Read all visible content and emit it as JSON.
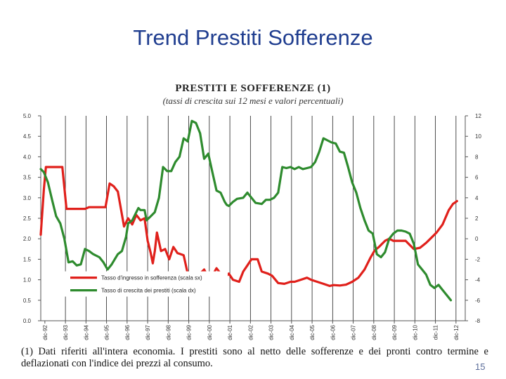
{
  "slide": {
    "title": "Trend Prestiti Sofferenze",
    "page_number": "15"
  },
  "chart_data": {
    "type": "line",
    "title": "PRESTITI E SOFFERENZE (1)",
    "subtitle": "(tassi di crescita sui 12 mesi e valori percentuali)",
    "footnote": "(1) Dati riferiti all'intera economia. I prestiti sono al netto delle sofferenze e dei pronti contro termine e deflazionati con l'indice dei prezzi al consumo.",
    "x_ticks": [
      "dic-92",
      "dic-93",
      "dic-94",
      "dic-95",
      "dic-96",
      "dic-97",
      "dic-98",
      "dic-99",
      "dic-00",
      "dic-01",
      "dic-02",
      "dic-03",
      "dic-04",
      "dic-05",
      "dic-06",
      "dic-07",
      "dic-08",
      "dic-09",
      "dic-10",
      "dic-11",
      "dic-12"
    ],
    "x_range": [
      1992.75,
      2013.4
    ],
    "left_axis": {
      "ticks": [
        "0.0",
        "0.5",
        "1.0",
        "1.5",
        "2.0",
        "2.5",
        "3.0",
        "3.5",
        "4.0",
        "4.5",
        "5.0"
      ],
      "ylim": [
        0,
        5
      ]
    },
    "right_axis": {
      "ticks": [
        "-8",
        "-6",
        "-4",
        "-2",
        "0",
        "2",
        "4",
        "6",
        "8",
        "10",
        "12"
      ],
      "ylim": [
        -8,
        12
      ]
    },
    "grid": "vertical",
    "legend_position": "lower-left",
    "series": [
      {
        "name": "Tasso d'ingresso in sofferenza (scala sx)",
        "axis": "left",
        "color": "#e0201b",
        "points": [
          [
            1992.75,
            2.1
          ],
          [
            1992.9,
            3.2
          ],
          [
            1993.0,
            3.75
          ],
          [
            1993.3,
            3.75
          ],
          [
            1993.6,
            3.75
          ],
          [
            1993.8,
            3.75
          ],
          [
            1994.0,
            2.73
          ],
          [
            1994.3,
            2.73
          ],
          [
            1994.6,
            2.73
          ],
          [
            1994.9,
            2.73
          ],
          [
            1995.1,
            2.77
          ],
          [
            1995.4,
            2.77
          ],
          [
            1995.7,
            2.77
          ],
          [
            1995.9,
            2.77
          ],
          [
            1996.1,
            3.35
          ],
          [
            1996.3,
            3.28
          ],
          [
            1996.5,
            3.15
          ],
          [
            1996.8,
            2.3
          ],
          [
            1997.0,
            2.5
          ],
          [
            1997.2,
            2.35
          ],
          [
            1997.4,
            2.58
          ],
          [
            1997.6,
            2.45
          ],
          [
            1997.8,
            2.5
          ],
          [
            1997.95,
            1.95
          ],
          [
            1998.1,
            1.65
          ],
          [
            1998.2,
            1.4
          ],
          [
            1998.3,
            1.7
          ],
          [
            1998.4,
            2.15
          ],
          [
            1998.6,
            1.7
          ],
          [
            1998.8,
            1.75
          ],
          [
            1999.0,
            1.5
          ],
          [
            1999.2,
            1.8
          ],
          [
            1999.4,
            1.65
          ],
          [
            1999.7,
            1.6
          ],
          [
            1999.9,
            1.15
          ],
          [
            2000.1,
            1.15
          ],
          [
            2000.3,
            1.12
          ],
          [
            2000.5,
            1.15
          ],
          [
            2000.7,
            1.25
          ],
          [
            2000.9,
            1.05
          ],
          [
            2001.1,
            1.1
          ],
          [
            2001.3,
            1.28
          ],
          [
            2001.5,
            1.15
          ],
          [
            2001.7,
            1.05
          ],
          [
            2001.9,
            1.15
          ],
          [
            2002.1,
            1.0
          ],
          [
            2002.4,
            0.95
          ],
          [
            2002.6,
            1.2
          ],
          [
            2002.8,
            1.35
          ],
          [
            2003.0,
            1.5
          ],
          [
            2003.3,
            1.5
          ],
          [
            2003.5,
            1.2
          ],
          [
            2003.8,
            1.15
          ],
          [
            2004.0,
            1.1
          ],
          [
            2004.3,
            0.92
          ],
          [
            2004.6,
            0.9
          ],
          [
            2004.9,
            0.95
          ],
          [
            2005.1,
            0.95
          ],
          [
            2005.4,
            1.0
          ],
          [
            2005.7,
            1.05
          ],
          [
            2005.9,
            1.0
          ],
          [
            2006.2,
            0.95
          ],
          [
            2006.5,
            0.9
          ],
          [
            2006.8,
            0.85
          ],
          [
            2007.0,
            0.87
          ],
          [
            2007.3,
            0.86
          ],
          [
            2007.6,
            0.88
          ],
          [
            2007.9,
            0.95
          ],
          [
            2008.2,
            1.05
          ],
          [
            2008.5,
            1.25
          ],
          [
            2008.8,
            1.55
          ],
          [
            2009.0,
            1.72
          ],
          [
            2009.2,
            1.8
          ],
          [
            2009.5,
            1.95
          ],
          [
            2009.7,
            2.0
          ],
          [
            2009.9,
            1.95
          ],
          [
            2010.2,
            1.95
          ],
          [
            2010.5,
            1.95
          ],
          [
            2010.7,
            1.85
          ],
          [
            2010.9,
            1.75
          ],
          [
            2011.2,
            1.78
          ],
          [
            2011.5,
            1.9
          ],
          [
            2011.8,
            2.05
          ],
          [
            2012.0,
            2.15
          ],
          [
            2012.3,
            2.35
          ],
          [
            2012.6,
            2.7
          ],
          [
            2012.8,
            2.85
          ],
          [
            2013.0,
            2.92
          ]
        ]
      },
      {
        "name": "Tasso di crescita dei prestiti (scala dx)",
        "axis": "right",
        "color": "#2e8b2e",
        "points": [
          [
            1992.75,
            6.8
          ],
          [
            1992.9,
            6.5
          ],
          [
            1993.1,
            5.5
          ],
          [
            1993.3,
            3.8
          ],
          [
            1993.5,
            2.2
          ],
          [
            1993.7,
            1.5
          ],
          [
            1993.9,
            0.0
          ],
          [
            1994.1,
            -2.3
          ],
          [
            1994.3,
            -2.2
          ],
          [
            1994.5,
            -2.6
          ],
          [
            1994.7,
            -2.5
          ],
          [
            1994.9,
            -1.0
          ],
          [
            1995.1,
            -1.2
          ],
          [
            1995.3,
            -1.5
          ],
          [
            1995.6,
            -1.8
          ],
          [
            1995.8,
            -2.3
          ],
          [
            1996.0,
            -3.0
          ],
          [
            1996.2,
            -2.5
          ],
          [
            1996.5,
            -1.5
          ],
          [
            1996.7,
            -1.2
          ],
          [
            1996.9,
            0.2
          ],
          [
            1997.0,
            1.5
          ],
          [
            1997.2,
            1.8
          ],
          [
            1997.5,
            3.0
          ],
          [
            1997.6,
            2.8
          ],
          [
            1997.8,
            2.8
          ],
          [
            1997.9,
            1.8
          ],
          [
            1998.1,
            2.2
          ],
          [
            1998.3,
            2.6
          ],
          [
            1998.5,
            4.0
          ],
          [
            1998.7,
            7.0
          ],
          [
            1998.9,
            6.6
          ],
          [
            1999.1,
            6.6
          ],
          [
            1999.3,
            7.5
          ],
          [
            1999.5,
            8.0
          ],
          [
            1999.7,
            9.8
          ],
          [
            1999.9,
            9.5
          ],
          [
            2000.1,
            11.5
          ],
          [
            2000.3,
            11.3
          ],
          [
            2000.5,
            10.3
          ],
          [
            2000.7,
            7.8
          ],
          [
            2000.9,
            8.3
          ],
          [
            2001.1,
            6.5
          ],
          [
            2001.3,
            4.7
          ],
          [
            2001.5,
            4.5
          ],
          [
            2001.7,
            3.6
          ],
          [
            2001.8,
            3.3
          ],
          [
            2001.9,
            3.2
          ],
          [
            2002.1,
            3.6
          ],
          [
            2002.3,
            3.9
          ],
          [
            2002.6,
            4.0
          ],
          [
            2002.8,
            4.5
          ],
          [
            2003.0,
            4.0
          ],
          [
            2003.2,
            3.5
          ],
          [
            2003.5,
            3.4
          ],
          [
            2003.7,
            3.8
          ],
          [
            2003.9,
            3.8
          ],
          [
            2004.1,
            4.0
          ],
          [
            2004.3,
            4.5
          ],
          [
            2004.5,
            7.0
          ],
          [
            2004.7,
            6.9
          ],
          [
            2004.9,
            7.0
          ],
          [
            2005.1,
            6.8
          ],
          [
            2005.3,
            7.0
          ],
          [
            2005.5,
            6.8
          ],
          [
            2005.7,
            6.9
          ],
          [
            2005.9,
            7.0
          ],
          [
            2006.1,
            7.5
          ],
          [
            2006.3,
            8.5
          ],
          [
            2006.5,
            9.8
          ],
          [
            2006.7,
            9.6
          ],
          [
            2006.9,
            9.4
          ],
          [
            2007.1,
            9.3
          ],
          [
            2007.3,
            8.5
          ],
          [
            2007.5,
            8.4
          ],
          [
            2007.7,
            7.0
          ],
          [
            2007.9,
            5.5
          ],
          [
            2008.1,
            4.5
          ],
          [
            2008.3,
            3.0
          ],
          [
            2008.5,
            1.8
          ],
          [
            2008.7,
            0.8
          ],
          [
            2008.9,
            0.5
          ],
          [
            2009.1,
            -1.5
          ],
          [
            2009.3,
            -1.8
          ],
          [
            2009.5,
            -1.3
          ],
          [
            2009.7,
            0.0
          ],
          [
            2009.9,
            0.5
          ],
          [
            2010.1,
            0.8
          ],
          [
            2010.3,
            0.8
          ],
          [
            2010.5,
            0.7
          ],
          [
            2010.7,
            0.5
          ],
          [
            2010.9,
            -0.5
          ],
          [
            2011.1,
            -2.5
          ],
          [
            2011.3,
            -3.0
          ],
          [
            2011.5,
            -3.5
          ],
          [
            2011.7,
            -4.5
          ],
          [
            2011.9,
            -4.8
          ],
          [
            2012.1,
            -4.5
          ],
          [
            2012.3,
            -5.0
          ],
          [
            2012.5,
            -5.5
          ],
          [
            2012.7,
            -6.0
          ]
        ]
      }
    ]
  }
}
